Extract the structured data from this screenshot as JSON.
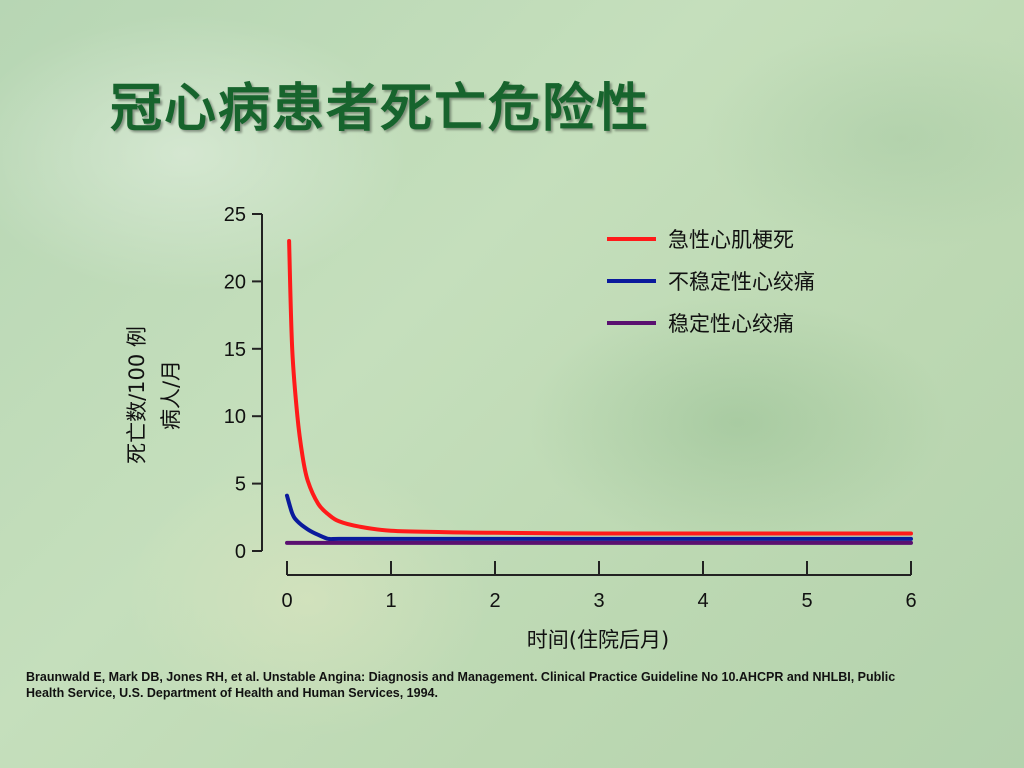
{
  "slide": {
    "title": "冠心病患者死亡危险性",
    "citation": "Braunwald E, Mark DB, Jones RH, et al. Unstable Angina: Diagnosis and Management. Clinical Practice Guideline No 10.AHCPR and NHLBI, Public Health Service, U.S. Department of Health and Human Services, 1994."
  },
  "chart_data": {
    "type": "line",
    "title": "",
    "xlabel": "时间(住院后月)",
    "ylabel_line1": "死亡数/100 例",
    "ylabel_line2": "病人/月",
    "xlim": [
      0,
      6
    ],
    "ylim": [
      0,
      25
    ],
    "xticks": [
      "0",
      "1",
      "2",
      "3",
      "4",
      "5",
      "6"
    ],
    "yticks": [
      "0",
      "5",
      "10",
      "15",
      "20",
      "25"
    ],
    "grid": false,
    "legend_position": "top-right",
    "series": [
      {
        "name": "急性心肌梗死",
        "color": "#ff1a1a",
        "x": [
          0.02,
          0.05,
          0.1,
          0.15,
          0.2,
          0.3,
          0.4,
          0.5,
          0.7,
          1.0,
          1.5,
          2.0,
          3.0,
          4.0,
          5.0,
          6.0
        ],
        "y": [
          23.0,
          15.0,
          10.0,
          7.0,
          5.2,
          3.5,
          2.7,
          2.2,
          1.8,
          1.5,
          1.4,
          1.35,
          1.3,
          1.3,
          1.3,
          1.3
        ]
      },
      {
        "name": "不稳定性心绞痛",
        "color": "#0a1a9c",
        "x": [
          0.0,
          0.05,
          0.1,
          0.2,
          0.3,
          0.4,
          0.5,
          1.0,
          2.0,
          3.0,
          4.0,
          5.0,
          6.0
        ],
        "y": [
          4.1,
          2.8,
          2.2,
          1.6,
          1.2,
          0.9,
          0.9,
          0.9,
          0.9,
          0.9,
          0.9,
          0.9,
          0.9
        ]
      },
      {
        "name": "稳定性心绞痛",
        "color": "#5a1070",
        "x": [
          0.0,
          1.0,
          2.0,
          3.0,
          4.0,
          5.0,
          6.0
        ],
        "y": [
          0.6,
          0.6,
          0.6,
          0.6,
          0.6,
          0.6,
          0.6
        ]
      }
    ]
  }
}
